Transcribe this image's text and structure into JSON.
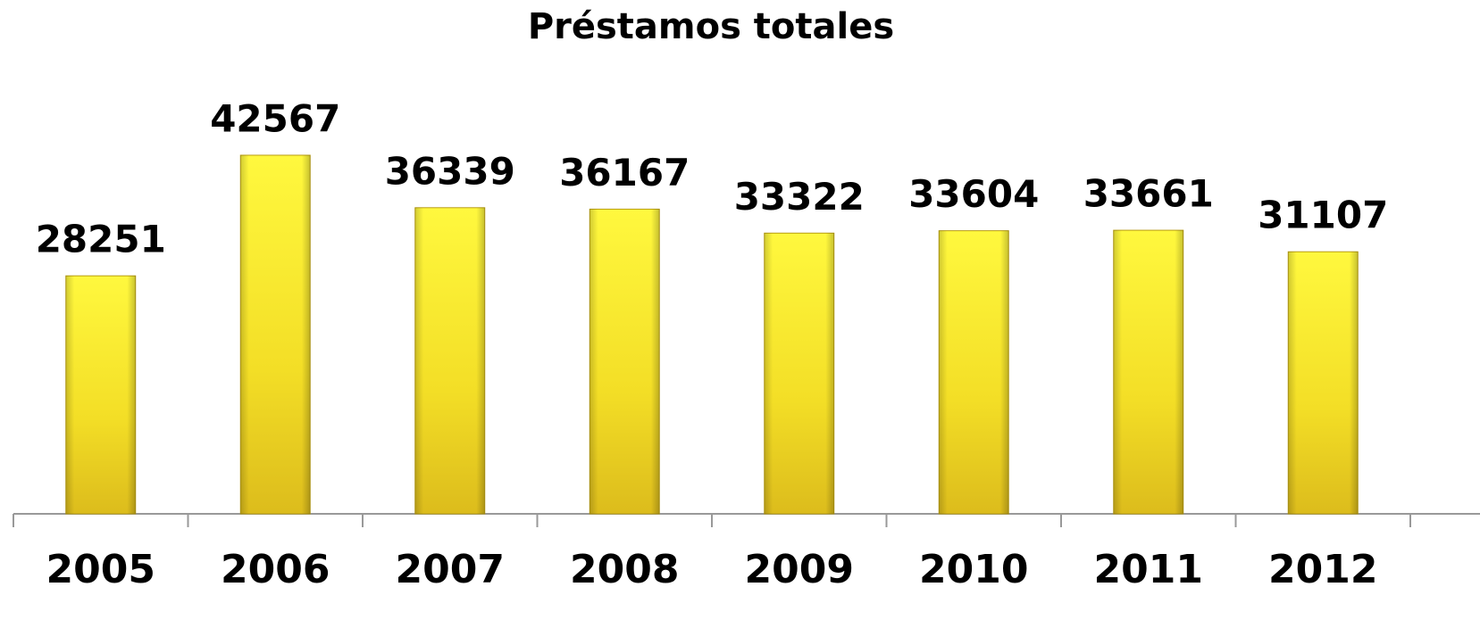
{
  "chart_data": {
    "type": "bar",
    "title": "Préstamos totales",
    "categories": [
      "2005",
      "2006",
      "2007",
      "2008",
      "2009",
      "2010",
      "2011",
      "2012"
    ],
    "values": [
      28251,
      42567,
      36339,
      36167,
      33322,
      33604,
      33661,
      31107
    ],
    "color": "#f5e22a",
    "ylim": [
      0,
      45000
    ]
  }
}
